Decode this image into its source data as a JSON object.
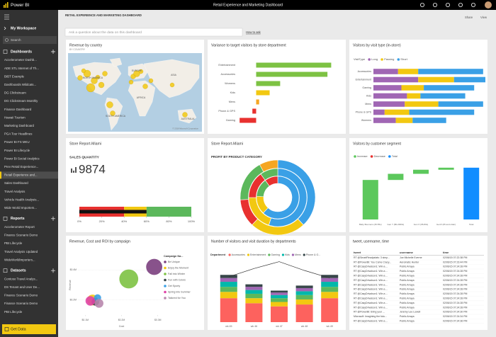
{
  "top_bar": {
    "app": "Power BI",
    "title": "Retail Experience and Marketing Dashboard"
  },
  "nav": {
    "workspace": "My Workspace",
    "search": "Search",
    "sections": [
      {
        "title": "Dashboards",
        "items": [
          "Accelerometer Dashb...",
          "ADE STL Internet of Th...",
          "BIBT Example",
          "Dashboards Wildcats...",
          "DG Clickstream",
          "DG Clickstream Monthly",
          "Finance Dashboard",
          "Hawaii Tourism",
          "Marketing Dashboard",
          "PGA Tour Headlines",
          "Power BI FS MKU",
          "Power BI Lifecycle",
          "Power BI Social Analytics",
          "Prev Retail Experience...",
          "Retail Experience and...",
          "Sales Dashboard",
          "Travel Analysis",
          "Vehicle Health Analysis...",
          "Wide World Importers..."
        ]
      },
      {
        "title": "Reports",
        "items": [
          "Accelerometer Report",
          "Finance Scenario Demo",
          "PBI Lifecycle",
          "Travel Analysis Updated",
          "WideWorldImporters..."
        ]
      },
      {
        "title": "Datasets",
        "items": [
          "Contoso Travel Analys...",
          "DS Tenant and User De...",
          "Finance Scenario Demo",
          "Finance Scenario Demo",
          "PBI Lifecycle"
        ]
      }
    ],
    "get_data": "Get Data"
  },
  "header": {
    "title": "RETAIL EXPERIENCE AND MARKETING DASHBOARD",
    "share": "Share",
    "view": "View",
    "qa_placeholder": "Ask a question about the data on this dashboard",
    "how_to_ask": "How to ask"
  },
  "tiles": [
    {
      "type": "map",
      "title": "Revenue by country",
      "subtitle": "BY COUNTRY",
      "labels": [
        "NORTH AMERICA",
        "EUROPE",
        "ASIA",
        "AFRICA",
        "SOUTH AMERICA",
        "AUSTRALIA"
      ],
      "attribution": "© 2016 Microsoft Corporation"
    },
    {
      "type": "hbar",
      "title": "Variance to target visitors by store department",
      "categories": [
        "Entertainment",
        "Accessories",
        "Womens",
        "Kids",
        "Mens",
        "Phone & GPS",
        "Gaming"
      ],
      "values": [
        100,
        95,
        32,
        18,
        4,
        -5,
        -22
      ],
      "colors": [
        "#7dc243",
        "#7dc243",
        "#7dc243",
        "#f2c811",
        "#f5a623",
        "#e8312f",
        "#e8312f"
      ],
      "xlim": [
        -25,
        110
      ]
    },
    {
      "type": "stacked_hbar",
      "title": "Visitors by visit type (in-store)",
      "legend_title": "VisitType",
      "categories": [
        "Accessories",
        "Entertainment",
        "Gaming",
        "Kids",
        "Mens",
        "Phone & GPS",
        "Womens"
      ],
      "series": [
        {
          "name": "Long",
          "color": "#a066b4",
          "values": [
            22,
            40,
            25,
            30,
            28,
            10,
            20
          ]
        },
        {
          "name": "Passing",
          "color": "#f2c811",
          "values": [
            18,
            32,
            20,
            12,
            30,
            22,
            15
          ]
        },
        {
          "name": "Short",
          "color": "#3aa0e6",
          "values": [
            58,
            28,
            45,
            40,
            40,
            58,
            30
          ]
        }
      ],
      "xlim": [
        0,
        100
      ]
    },
    {
      "type": "kpi",
      "title": "Store Report-Miami",
      "label": "SALES QUANTITY",
      "value": 9874,
      "gauge": {
        "bands": [
          {
            "to": 40,
            "color": "#e8312f"
          },
          {
            "to": 60,
            "color": "#f2c811"
          },
          {
            "to": 100,
            "color": "#5cb85c"
          }
        ],
        "value": 60,
        "xlim": [
          0,
          100
        ],
        "xticks": [
          {
            "value": 0,
            "label": "0%"
          },
          {
            "value": 20,
            "label": "20%"
          },
          {
            "value": 40,
            "label": "40%"
          },
          {
            "value": 60,
            "label": "60%"
          },
          {
            "value": 80,
            "label": "80%"
          },
          {
            "value": 100,
            "label": "100%"
          }
        ]
      }
    },
    {
      "type": "sunburst",
      "title": "Store Report-Miami",
      "subtitle": "PROFIT BY PRODUCT CATEGORY",
      "rings": [
        {
          "values": [
            62,
            14,
            14,
            10
          ],
          "colors": [
            "#3aa0e6",
            "#f2c811",
            "#5cb85c",
            "#e8312f"
          ]
        },
        {
          "values": [
            55,
            20,
            15,
            10
          ],
          "colors": [
            "#3aa0e6",
            "#f2c811",
            "#e8312f",
            "#5cb85c"
          ]
        },
        {
          "values": [
            38,
            24,
            12,
            18,
            8
          ],
          "colors": [
            "#3aa0e6",
            "#f2c811",
            "#e8312f",
            "#5cb85c",
            "#f5a623"
          ]
        }
      ]
    },
    {
      "type": "waterfall",
      "title": "Visitors by customer segment",
      "legend": [
        {
          "name": "Increase",
          "color": "#5cc85c"
        },
        {
          "name": "Decrease",
          "color": "#e8312f"
        },
        {
          "name": "Total",
          "color": "#118dff"
        }
      ],
      "categories": [
        "Baby Boomers (45-55s)",
        "Gen Y (80-2000s)",
        "Gen X (65-80s)",
        "GenX (65 and older)",
        "Total"
      ],
      "values": [
        58,
        9,
        6,
        3,
        76
      ],
      "ylim": [
        0,
        80
      ]
    },
    {
      "type": "bubble",
      "title": "Revenue, Cost and ROI by campaign",
      "x_label": "Cost",
      "y_label": "Revenue",
      "legend_title": "Campaign Na...",
      "series": [
        {
          "name": "Be Unique",
          "color": "#7b3f7e",
          "x": 290000,
          "y": 420000,
          "size": 40
        },
        {
          "name": "Enjoy the Moment",
          "color": "#f2c811",
          "x": 120000,
          "y": 200000,
          "size": 18
        },
        {
          "name": "Fall into Winter",
          "color": "#7dc243",
          "x": 220000,
          "y": 340000,
          "size": 55
        },
        {
          "name": "Fun with Colors",
          "color": "#374649",
          "x": 128000,
          "y": 188000,
          "size": 9
        },
        {
          "name": "Get Sporty",
          "color": "#3aa0e6",
          "x": 134000,
          "y": 214000,
          "size": 8
        },
        {
          "name": "Spring into Summer",
          "color": "#e044a7",
          "x": 114000,
          "y": 194000,
          "size": 14
        },
        {
          "name": "Tailored for You",
          "color": "#b887ad",
          "x": 138000,
          "y": 178000,
          "size": 12
        }
      ],
      "xlim": [
        80000,
        320000
      ],
      "ylim": [
        100000,
        500000
      ],
      "xticks": [
        {
          "value": 100000,
          "label": "$0.1M"
        },
        {
          "value": 200000,
          "label": "$0.2M"
        },
        {
          "value": 300000,
          "label": "$0.3M"
        }
      ],
      "yticks": [
        {
          "value": 200000,
          "label": "$0.2M"
        },
        {
          "value": 400000,
          "label": "$0.4M"
        }
      ],
      "grid": true
    },
    {
      "type": "combo",
      "title": "Number of visitors and visit duration by departments",
      "legend_title": "Department",
      "categories": [
        "wk 45",
        "wk 46",
        "wk 47",
        "wk 48",
        "wk 49"
      ],
      "series": [
        {
          "name": "Accessories",
          "color": "#fd625e",
          "values": [
            38,
            30,
            25,
            28,
            38
          ]
        },
        {
          "name": "Entertainment",
          "color": "#f2c811",
          "values": [
            10,
            8,
            7,
            8,
            10
          ]
        },
        {
          "name": "Gaming",
          "color": "#5cb85c",
          "values": [
            8,
            7,
            6,
            7,
            8
          ]
        },
        {
          "name": "Kids",
          "color": "#01b8aa",
          "values": [
            8,
            6,
            5,
            6,
            8
          ]
        },
        {
          "name": "Mens",
          "color": "#a066b4",
          "values": [
            6,
            5,
            4,
            5,
            6
          ]
        },
        {
          "name": "Phone & G...",
          "color": "#374649",
          "values": [
            5,
            4,
            3,
            4,
            5
          ]
        }
      ],
      "line": {
        "color": "#333333",
        "values": [
          72,
          85,
          96,
          82,
          70
        ]
      },
      "ylim": [
        0,
        100
      ],
      "y2lim": [
        0,
        100
      ]
    },
    {
      "type": "table",
      "title": "tweet, username, time",
      "columns": [
        "tweet",
        "username",
        "time"
      ],
      "rows": [
        [
          "RT @SmartReadystats: 3 simp...",
          "Joe Michelle Everne",
          "02/06/15 07:22:38 PM"
        ],
        [
          "RT @PowerBI: You Come Crazy...",
          "Aeromatic Hunter",
          "02/06/15 07:23:44 PM"
        ],
        [
          "RT @CasyDrivalson1: Win a ...",
          "Public Arraya",
          "02/06/15 07:24:28 PM"
        ],
        [
          "RT @CasyDrivalson1: Win a ...",
          "Public Arraya",
          "02/06/15 07:24:28 PM"
        ],
        [
          "RT @CasyDrivalson1: Win a ...",
          "Public Arraya",
          "02/06/15 07:24:28 PM"
        ],
        [
          "RT @CasyDrivalson1: Win a ...",
          "Public Arraya",
          "02/06/15 07:24:28 PM"
        ],
        [
          "RT @CasyDrivalson1: Win a ...",
          "Public Arraya",
          "02/06/15 07:24:28 PM"
        ],
        [
          "RT @CasyDrivalson1: Win a ...",
          "Public Arraya",
          "02/06/15 07:24:28 PM"
        ],
        [
          "RT @CasyDrivalson1: Win a ...",
          "Public Arraya",
          "02/06/15 07:24:28 PM"
        ],
        [
          "RT @CasyDrivalson1: Win a ...",
          "Public Arraya",
          "02/06/15 07:24:28 PM"
        ],
        [
          "RT @CasyDrivalson1: Win a ...",
          "Public Arraya",
          "02/06/15 07:24:28 PM"
        ],
        [
          "RT @CasyDrivalson1: Win a ...",
          "Public Arraya",
          "02/06/15 07:24:28 PM"
        ],
        [
          "RT @PowerBI: Bring your ...",
          "Jeremy Lee Lowell",
          "02/06/15 07:24:30 PM"
        ],
        [
          "Microsoft: Imagining the futu...",
          "Public Arraya",
          "02/06/15 07:24:34 PM"
        ],
        [
          "RT @CasyDrivalson1: Win a ...",
          "Public Arraya",
          "02/06/15 07:24:36 PM"
        ]
      ]
    }
  ]
}
